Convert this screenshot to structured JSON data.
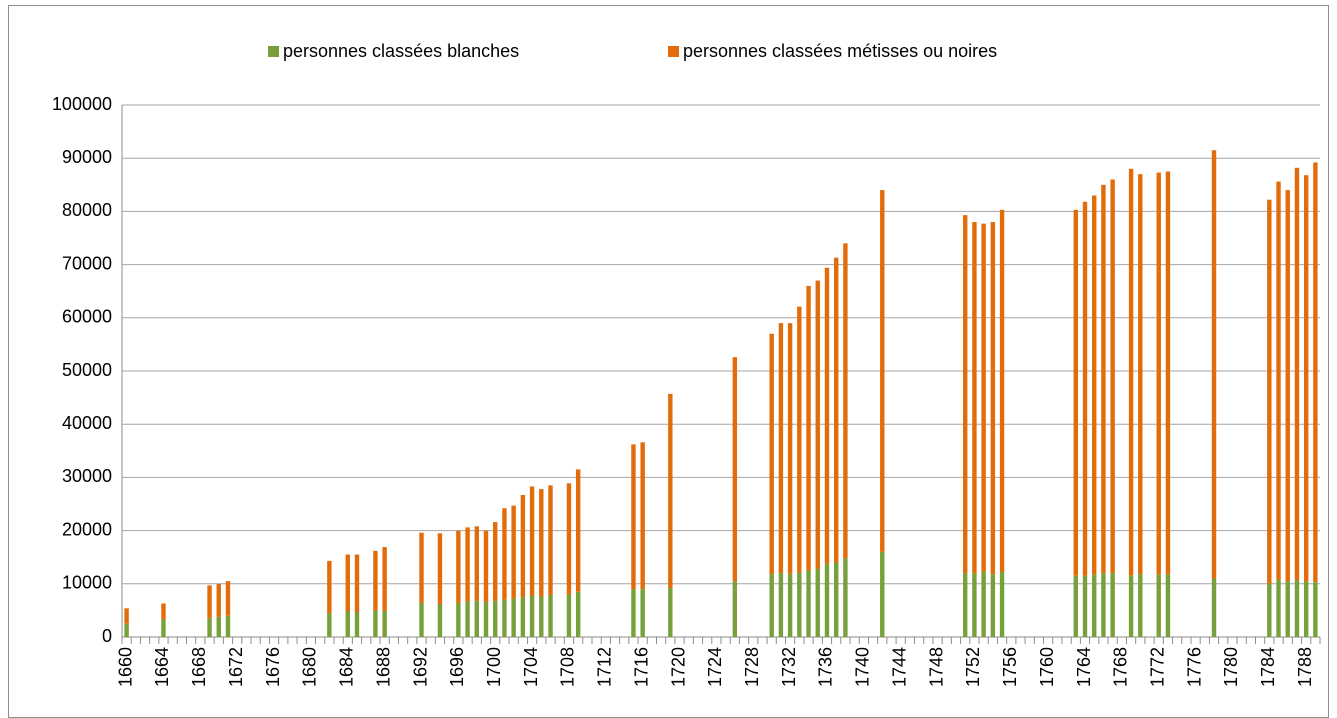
{
  "chart_data": {
    "type": "stacked_bar",
    "categories": [
      "1660",
      null,
      null,
      null,
      "1664",
      null,
      null,
      null,
      "1668",
      null,
      null,
      null,
      "1672",
      null,
      null,
      null,
      "1676",
      null,
      null,
      null,
      "1680",
      null,
      null,
      null,
      "1684",
      null,
      null,
      null,
      "1688",
      null,
      null,
      null,
      "1692",
      null,
      null,
      null,
      "1696",
      null,
      null,
      null,
      "1700",
      null,
      null,
      null,
      "1704",
      null,
      null,
      null,
      "1708",
      null,
      null,
      null,
      "1712",
      null,
      null,
      null,
      "1716",
      null,
      null,
      null,
      "1720",
      null,
      null,
      null,
      "1724",
      null,
      null,
      null,
      "1728",
      null,
      null,
      null,
      "1732",
      null,
      null,
      null,
      "1736",
      null,
      null,
      null,
      "1740",
      null,
      null,
      null,
      "1744",
      null,
      null,
      null,
      "1748",
      null,
      null,
      null,
      "1752",
      null,
      null,
      null,
      "1756",
      null,
      null,
      null,
      "1760",
      null,
      null,
      null,
      "1764",
      null,
      null,
      null,
      "1768",
      null,
      null,
      null,
      "1772",
      null,
      null,
      null,
      "1776",
      null,
      null,
      null,
      "1780",
      null,
      null,
      null,
      "1784",
      null,
      null,
      null,
      "1788",
      null
    ],
    "series": [
      {
        "name": "personnes classées blanches",
        "color": "#77a03a",
        "values": [
          2500,
          null,
          null,
          null,
          3300,
          null,
          null,
          null,
          null,
          3500,
          3800,
          4000,
          null,
          null,
          null,
          null,
          null,
          null,
          null,
          null,
          null,
          null,
          4500,
          null,
          4800,
          4700,
          null,
          5000,
          4900,
          null,
          null,
          null,
          6500,
          null,
          6200,
          null,
          6400,
          6700,
          6800,
          6600,
          6800,
          7000,
          7200,
          7500,
          7800,
          7600,
          7900,
          null,
          8000,
          8500,
          null,
          null,
          null,
          null,
          null,
          9000,
          9000,
          null,
          null,
          9200,
          null,
          null,
          null,
          null,
          null,
          null,
          10500,
          null,
          null,
          null,
          11800,
          12000,
          11900,
          12100,
          12500,
          12800,
          13800,
          14000,
          14800,
          null,
          null,
          null,
          16000,
          null,
          null,
          null,
          null,
          null,
          null,
          null,
          null,
          12000,
          12000,
          12300,
          11800,
          12200,
          null,
          null,
          null,
          null,
          null,
          null,
          null,
          11500,
          11500,
          11800,
          12000,
          12000,
          null,
          11600,
          11800,
          null,
          11800,
          11800,
          null,
          null,
          null,
          null,
          11000,
          null,
          null,
          null,
          null,
          null,
          10000,
          10800,
          10500,
          10700,
          10400,
          10300
        ]
      },
      {
        "name": "personnes  classées métisses ou noires",
        "color": "#e36c0a",
        "values": [
          2900,
          null,
          null,
          null,
          3000,
          null,
          null,
          null,
          null,
          6200,
          6200,
          6500,
          null,
          null,
          null,
          null,
          null,
          null,
          null,
          null,
          null,
          null,
          9800,
          null,
          10700,
          10800,
          null,
          11200,
          12000,
          null,
          null,
          null,
          13100,
          null,
          13300,
          null,
          13600,
          13900,
          14000,
          13400,
          14800,
          17200,
          17500,
          19200,
          20500,
          20200,
          20600,
          null,
          20900,
          23000,
          null,
          null,
          null,
          null,
          null,
          27200,
          27600,
          null,
          null,
          36500,
          null,
          null,
          null,
          null,
          null,
          null,
          42100,
          null,
          null,
          null,
          45200,
          47000,
          47100,
          50000,
          53500,
          54200,
          55600,
          57300,
          59200,
          null,
          null,
          null,
          68000,
          null,
          null,
          null,
          null,
          null,
          null,
          null,
          null,
          67300,
          66000,
          65400,
          66200,
          68100,
          null,
          null,
          null,
          null,
          null,
          null,
          null,
          68800,
          70300,
          71200,
          73000,
          74000,
          null,
          76400,
          75200,
          null,
          75500,
          75700,
          null,
          null,
          null,
          null,
          80500,
          null,
          null,
          null,
          null,
          null,
          72200,
          74800,
          73500,
          77500,
          76400,
          78900
        ]
      }
    ],
    "ylim": [
      0,
      100000
    ],
    "yticks": [
      0,
      10000,
      20000,
      30000,
      40000,
      50000,
      60000,
      70000,
      80000,
      90000,
      100000
    ],
    "grid": true,
    "legend": "top"
  }
}
